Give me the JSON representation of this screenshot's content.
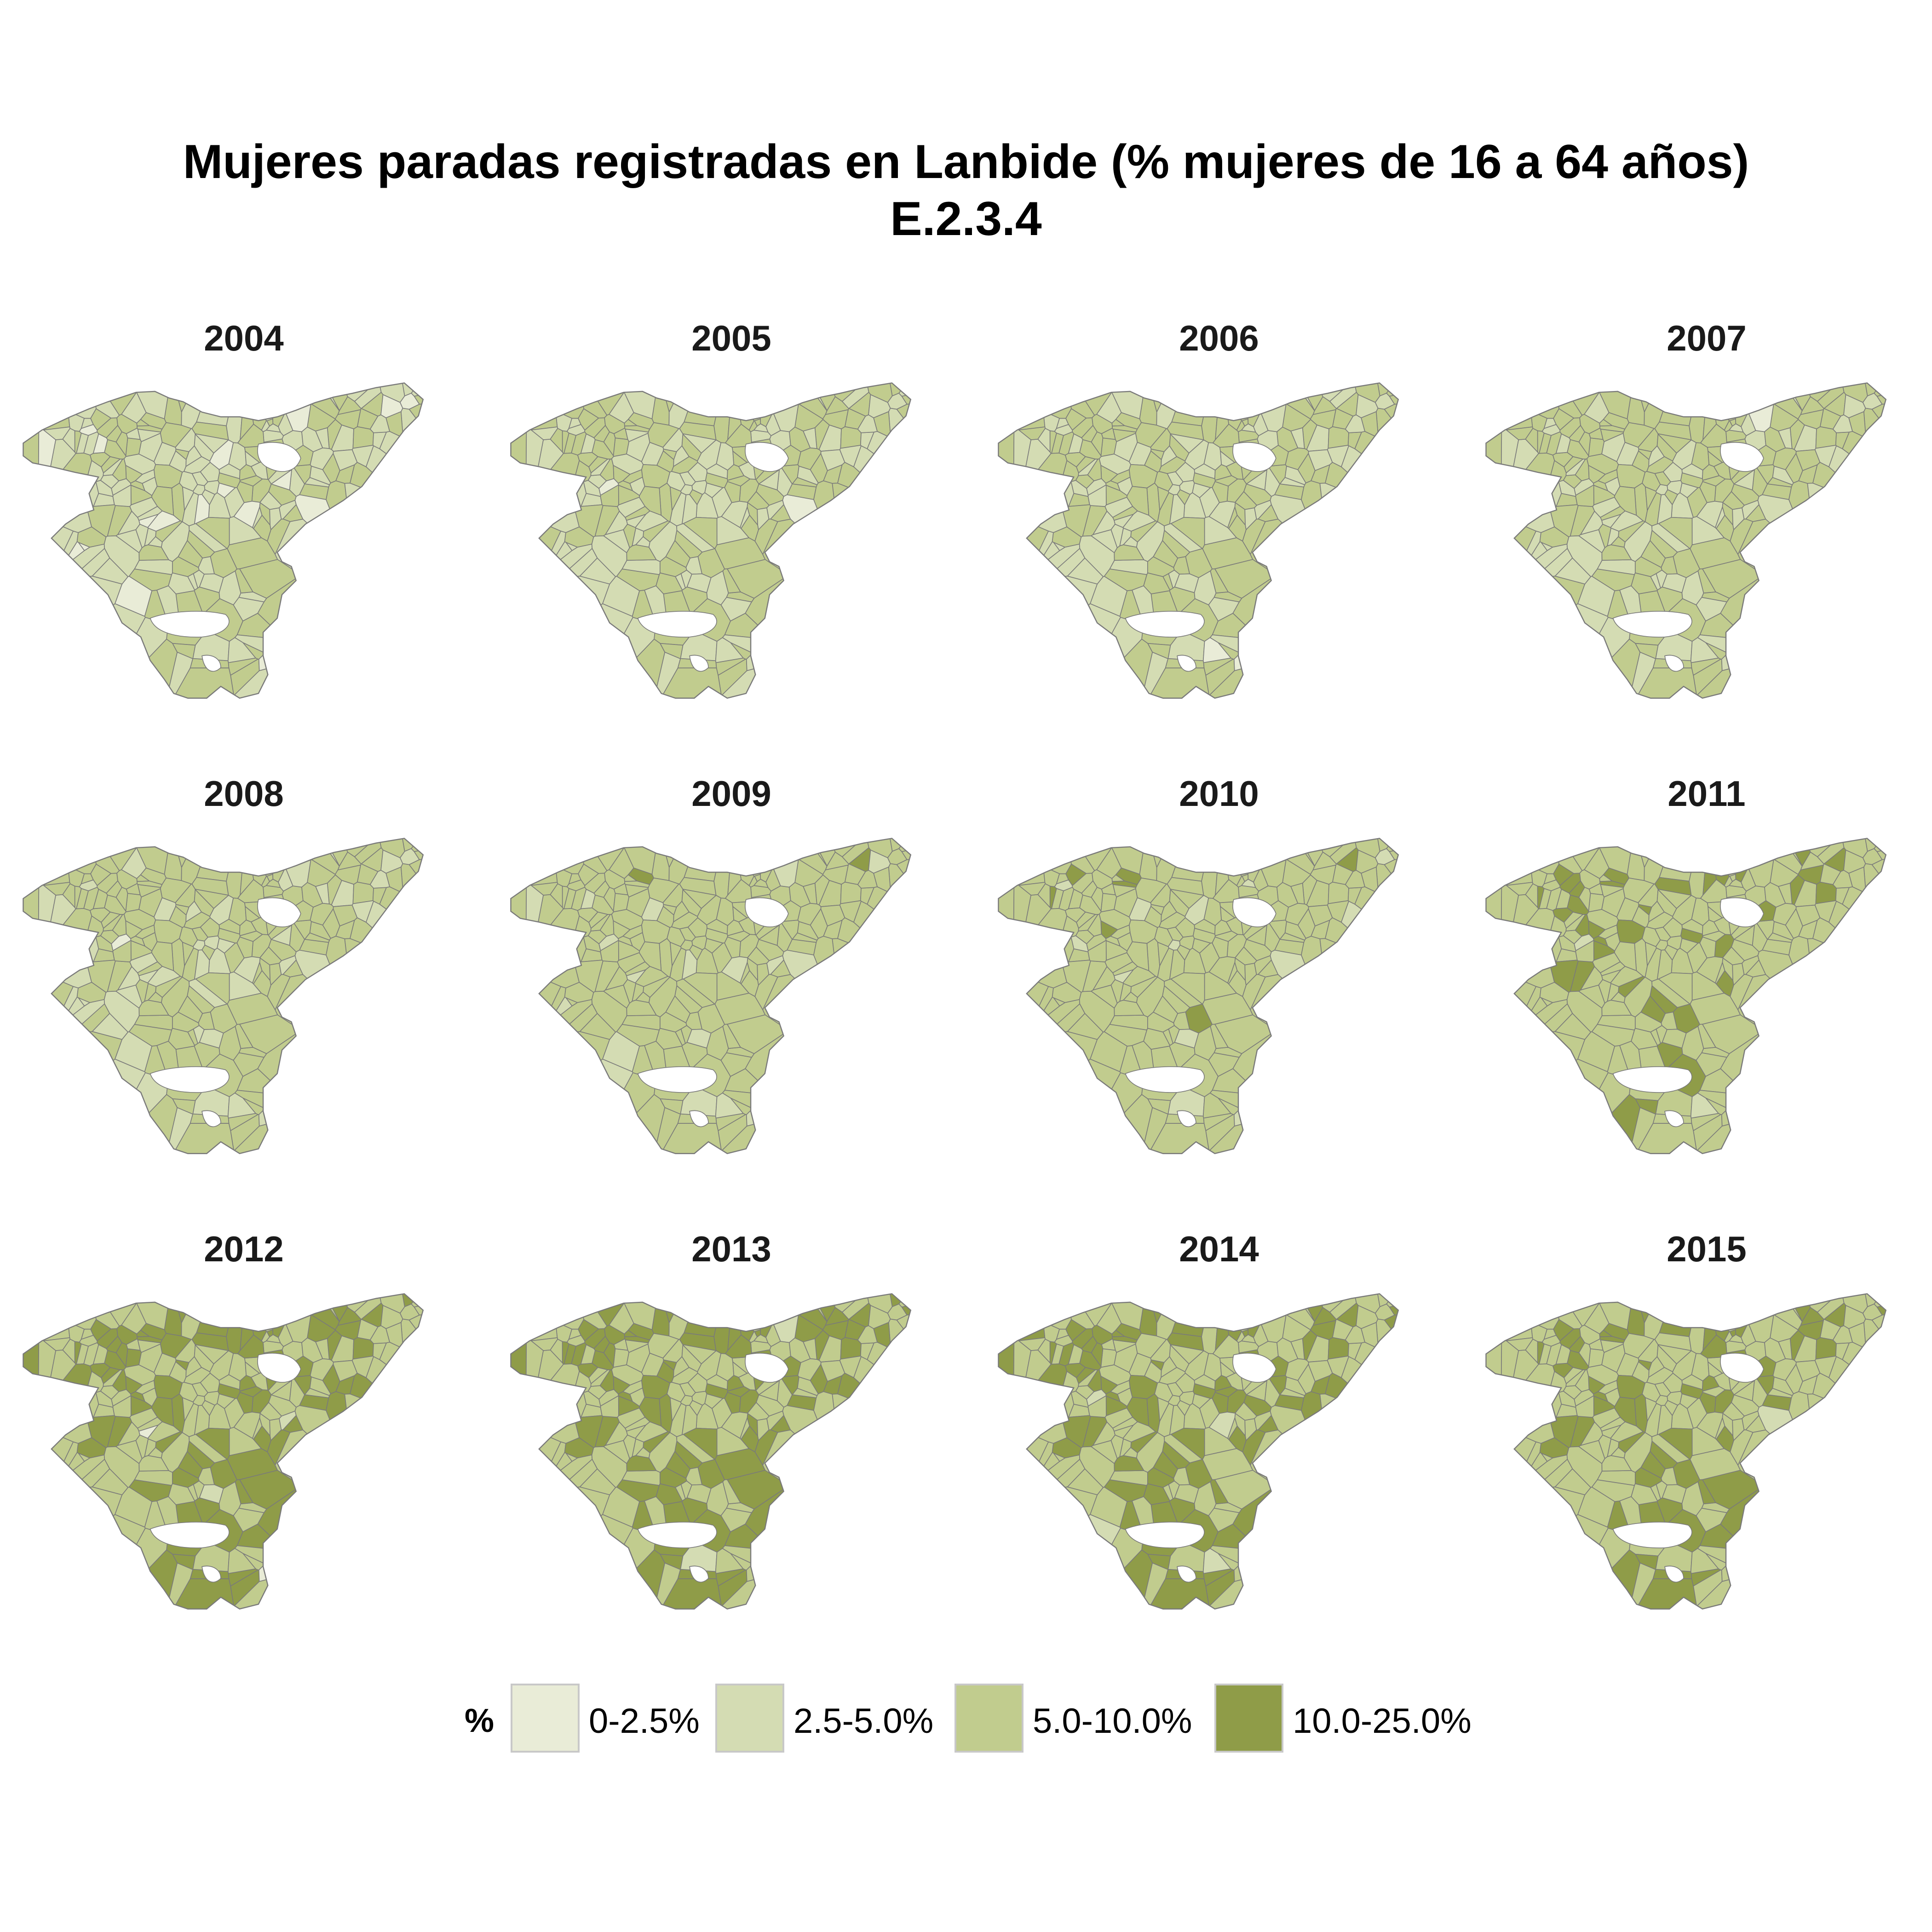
{
  "title": {
    "line1": "Mujeres paradas registradas en Lanbide (% mujeres de 16 a 64 años)",
    "line2": "E.2.3.4"
  },
  "legend": {
    "title": "%",
    "items": [
      {
        "label": "0-2.5%",
        "color": "#e9ecd7"
      },
      {
        "label": "2.5-5.0%",
        "color": "#d4dcb3"
      },
      {
        "label": "5.0-10.0%",
        "color": "#c1cc8e"
      },
      {
        "label": "10.0-25.0%",
        "color": "#8f9c48"
      }
    ]
  },
  "colors": {
    "border": "#7a7a7a",
    "hole": "#ffffff"
  },
  "panels": [
    {
      "year": "2004",
      "mix": [
        0.16,
        0.42,
        0.42,
        0.0
      ]
    },
    {
      "year": "2005",
      "mix": [
        0.06,
        0.4,
        0.54,
        0.0
      ]
    },
    {
      "year": "2006",
      "mix": [
        0.06,
        0.36,
        0.58,
        0.0
      ]
    },
    {
      "year": "2007",
      "mix": [
        0.05,
        0.3,
        0.65,
        0.0
      ]
    },
    {
      "year": "2008",
      "mix": [
        0.04,
        0.22,
        0.72,
        0.02
      ]
    },
    {
      "year": "2009",
      "mix": [
        0.02,
        0.14,
        0.77,
        0.07
      ]
    },
    {
      "year": "2010",
      "mix": [
        0.02,
        0.1,
        0.76,
        0.12
      ]
    },
    {
      "year": "2011",
      "mix": [
        0.01,
        0.07,
        0.68,
        0.24
      ]
    },
    {
      "year": "2012",
      "mix": [
        0.03,
        0.05,
        0.52,
        0.4
      ]
    },
    {
      "year": "2013",
      "mix": [
        0.02,
        0.05,
        0.55,
        0.38
      ]
    },
    {
      "year": "2014",
      "mix": [
        0.02,
        0.05,
        0.55,
        0.38
      ]
    },
    {
      "year": "2015",
      "mix": [
        0.01,
        0.06,
        0.63,
        0.3
      ]
    }
  ]
}
